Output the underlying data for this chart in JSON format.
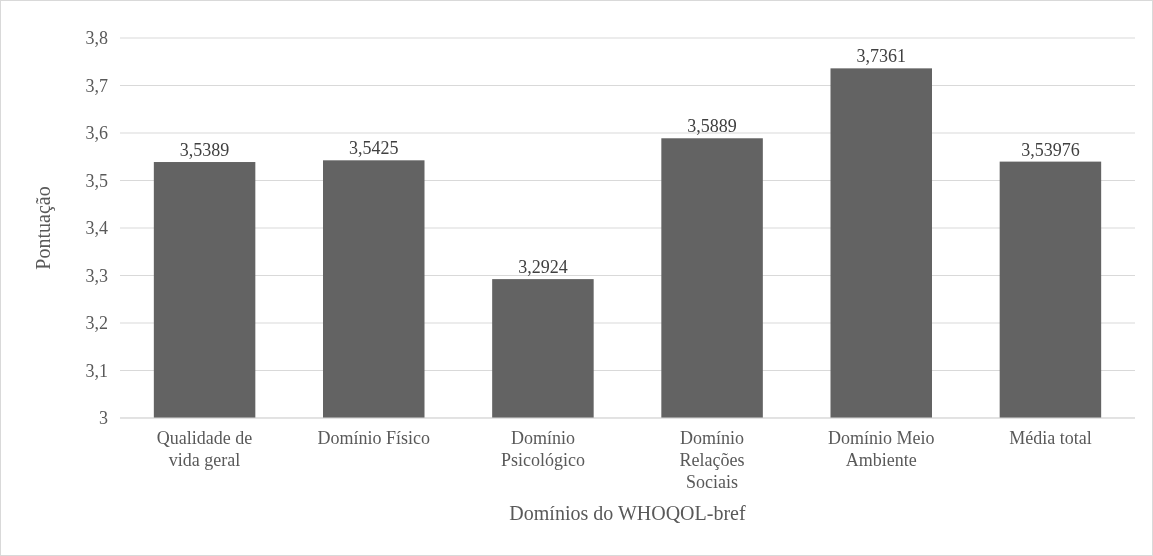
{
  "chart_data": {
    "type": "bar",
    "categories": [
      "Qualidade de vida geral",
      "Domínio Físico",
      "Domínio Psicológico",
      "Domínio Relações Sociais",
      "Domínio Meio Ambiente",
      "Média total"
    ],
    "values": [
      3.5389,
      3.5425,
      3.2924,
      3.5889,
      3.7361,
      3.53976
    ],
    "value_labels": [
      "3,5389",
      "3,5425",
      "3,2924",
      "3,5889",
      "3,7361",
      "3,53976"
    ],
    "color": "#636363",
    "xlabel": "Domínios do WHOQOL-bref",
    "ylabel": "Pontuação",
    "ylim": [
      3,
      3.8
    ],
    "yticks": [
      3,
      {
        "value": 3.1,
        "label": "3,1"
      },
      {
        "value": 3.2,
        "label": "3,2"
      },
      {
        "value": 3.3,
        "label": "3,3"
      },
      {
        "value": 3.4,
        "label": "3,4"
      },
      {
        "value": 3.5,
        "label": "3,5"
      },
      {
        "value": 3.6,
        "label": "3,6"
      },
      {
        "value": 3.7,
        "label": "3,7"
      },
      {
        "value": 3.8,
        "label": "3,8"
      }
    ],
    "grid": "y"
  }
}
